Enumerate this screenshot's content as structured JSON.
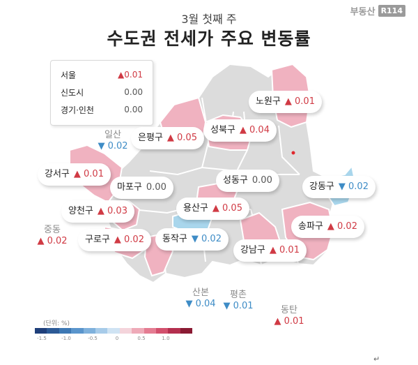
{
  "header": {
    "subtitle": "3월 첫째 주",
    "title": "수도권 전세가 주요 변동률",
    "brand_text": "부동산",
    "brand_logo": "R114"
  },
  "summary": [
    {
      "name": "서울",
      "value": "▲0.01",
      "trend": "up"
    },
    {
      "name": "신도시",
      "value": "0.00",
      "trend": "flat"
    },
    {
      "name": "경기·인천",
      "value": "0.00",
      "trend": "flat"
    }
  ],
  "districts": [
    {
      "name": "노원구",
      "value": "▲ 0.01",
      "trend": "up"
    },
    {
      "name": "은평구",
      "value": "▲ 0.05",
      "trend": "up"
    },
    {
      "name": "성북구",
      "value": "▲ 0.04",
      "trend": "up"
    },
    {
      "name": "강서구",
      "value": "▲ 0.01",
      "trend": "up"
    },
    {
      "name": "마포구",
      "value": "0.00",
      "trend": "flat"
    },
    {
      "name": "성동구",
      "value": "0.00",
      "trend": "flat"
    },
    {
      "name": "강동구",
      "value": "▼ 0.02",
      "trend": "down"
    },
    {
      "name": "양천구",
      "value": "▲ 0.03",
      "trend": "up"
    },
    {
      "name": "용산구",
      "value": "▲ 0.05",
      "trend": "up"
    },
    {
      "name": "송파구",
      "value": "▲ 0.02",
      "trend": "up"
    },
    {
      "name": "구로구",
      "value": "▲ 0.02",
      "trend": "up"
    },
    {
      "name": "동작구",
      "value": "▼ 0.02",
      "trend": "down"
    },
    {
      "name": "강남구",
      "value": "▲ 0.01",
      "trend": "up"
    }
  ],
  "new_towns": [
    {
      "name": "일산",
      "value": "▼ 0.02",
      "trend": "down"
    },
    {
      "name": "중동",
      "value": "▲ 0.02",
      "trend": "up"
    },
    {
      "name": "산본",
      "value": "▼ 0.04",
      "trend": "down"
    },
    {
      "name": "평촌",
      "value": "▼ 0.01",
      "trend": "down"
    },
    {
      "name": "동탄",
      "value": "▲ 0.01",
      "trend": "up"
    }
  ],
  "legend": {
    "unit": "(단위: %)",
    "ticks": [
      "-1.5",
      "-1.0",
      "-0.5",
      "0",
      "0.5",
      "1.0"
    ],
    "colors": [
      "#1f3f7a",
      "#2c5a96",
      "#3d78b4",
      "#5a95cc",
      "#7fb1dc",
      "#a7cbe9",
      "#cfe3f3",
      "#f4d4db",
      "#eeaab8",
      "#e47c92",
      "#d2506d",
      "#b42f4e",
      "#8a1a33"
    ]
  },
  "colors": {
    "up_fill": "#f0b2c0",
    "down_fill": "#a9d6ec",
    "flat_fill": "#dcdcdc",
    "up_text": "#d03a44",
    "down_text": "#3e8cc6"
  },
  "footer_mark": "↵"
}
